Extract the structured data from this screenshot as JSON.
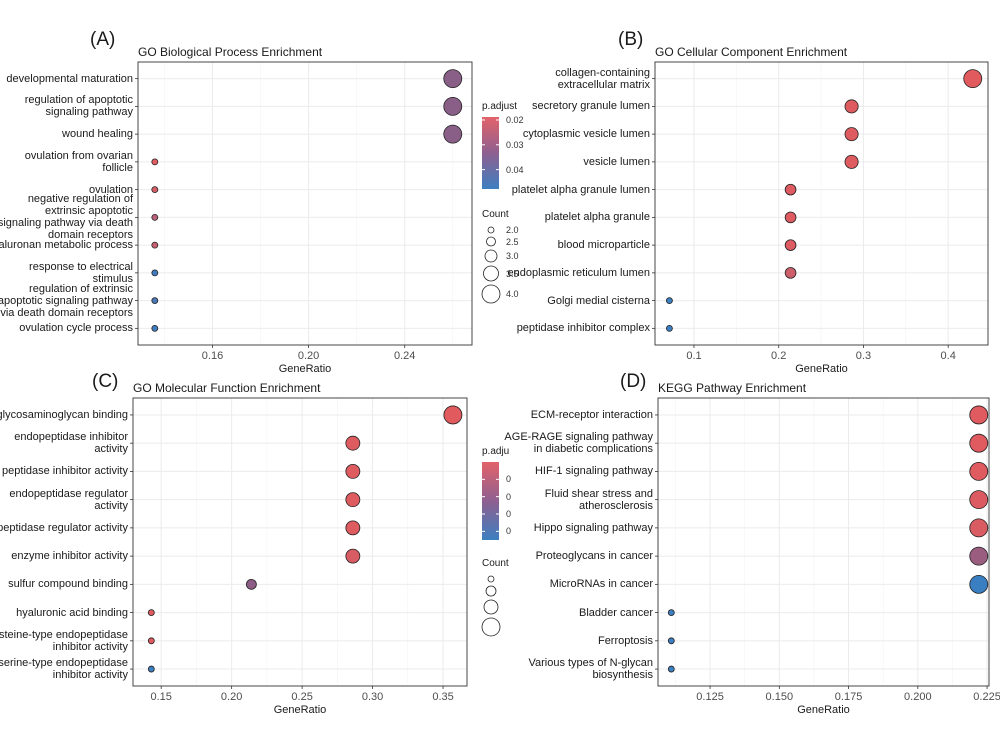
{
  "chart_data": [
    {
      "type": "dotplot",
      "panel_label": "(A)",
      "title": "GO Biological Process Enrichment",
      "xlabel": "GeneRatio",
      "categories": [
        "developmental maturation",
        "regulation of apoptotic\nsignaling pathway",
        "wound healing",
        "ovulation from ovarian\nfollicle",
        "ovulation",
        "negative regulation of\nextrinsic apoptotic\nsignaling pathway via death\ndomain receptors",
        "hyaluronan metabolic process",
        "response to electrical\nstimulus",
        "regulation of extrinsic\napoptotic signaling pathway\nvia death domain receptors",
        "ovulation cycle process"
      ],
      "values": [
        0.26,
        0.26,
        0.26,
        0.136,
        0.136,
        0.136,
        0.136,
        0.136,
        0.136,
        0.136
      ],
      "sizes": [
        4,
        4,
        4,
        2,
        2,
        2,
        2,
        2,
        2,
        2
      ],
      "colors": [
        "#8a5f87",
        "#8a5f87",
        "#8a5f87",
        "#df5d63",
        "#d65e66",
        "#b9617a",
        "#c8606f",
        "#3f7bbd",
        "#4b78b5",
        "#3f7cbd"
      ],
      "xlim": [
        0.129,
        0.268
      ],
      "xticks": [
        0.16,
        {
          "value": 0.2,
          "label": "0.20"
        },
        0.24
      ],
      "grid": true,
      "colorbar": {
        "title": "p.adjust",
        "clim": [
          0.0188,
          0.0478
        ],
        "ticks": [
          0.02,
          0.03,
          0.04
        ],
        "colors": [
          "#e2626a",
          "#8e6090",
          "#3d7fc0"
        ]
      },
      "size_legend": {
        "title": "Count",
        "values": [
          {
            "value": 2,
            "label": "2.0"
          },
          2.5,
          {
            "value": 3,
            "label": "3.0"
          },
          3.5,
          {
            "value": 4,
            "label": "4.0"
          }
        ]
      }
    },
    {
      "type": "dotplot",
      "panel_label": "(B)",
      "title": "GO Cellular Component Enrichment",
      "xlabel": "GeneRatio",
      "categories": [
        "collagen-containing\nextracellular matrix",
        "secretory granule lumen",
        "cytoplasmic vesicle lumen",
        "vesicle lumen",
        "platelet alpha granule lumen",
        "platelet alpha granule",
        "blood microparticle",
        "endoplasmic reticulum lumen",
        "Golgi medial cisterna",
        "peptidase inhibitor complex"
      ],
      "values": [
        0.429,
        0.286,
        0.286,
        0.286,
        0.214,
        0.214,
        0.214,
        0.214,
        0.071,
        0.071
      ],
      "sizes": [
        6,
        4,
        4,
        4,
        3,
        3,
        3,
        3,
        1,
        1
      ],
      "colors": [
        "#e05a5e",
        "#de5b60",
        "#de5b60",
        "#de5b60",
        "#dd5b61",
        "#dd5b61",
        "#dd5b61",
        "#cc5f6a",
        "#3d7ec0",
        "#3d7ec0"
      ],
      "xlim": [
        0.054,
        0.447
      ],
      "xticks": [
        0.1,
        0.2,
        0.3,
        0.4
      ],
      "grid": true
    },
    {
      "type": "dotplot",
      "panel_label": "(C)",
      "title": "GO Molecular Function Enrichment",
      "xlabel": "GeneRatio",
      "categories": [
        "glycosaminoglycan binding",
        "endopeptidase inhibitor\nactivity",
        "peptidase inhibitor activity",
        "endopeptidase regulator\nactivity",
        "peptidase regulator activity",
        "enzyme inhibitor activity",
        "sulfur compound binding",
        "hyaluronic acid binding",
        "cysteine-type endopeptidase\ninhibitor activity",
        "serine-type endopeptidase\ninhibitor activity"
      ],
      "values": [
        0.357,
        0.286,
        0.286,
        0.286,
        0.286,
        0.286,
        0.214,
        0.143,
        0.143,
        0.143
      ],
      "sizes": [
        5,
        4,
        4,
        4,
        4,
        4,
        3,
        2,
        2,
        2
      ],
      "colors": [
        "#e05a5e",
        "#de5b60",
        "#de5b60",
        "#de5b60",
        "#de5b60",
        "#d75c63",
        "#8d5d85",
        "#df5b60",
        "#df5b60",
        "#3d7ec0"
      ],
      "xlim": [
        0.13,
        0.367
      ],
      "xticks": [
        0.15,
        {
          "value": 0.2,
          "label": "0.20"
        },
        0.25,
        {
          "value": 0.3,
          "label": "0.30"
        },
        0.35
      ],
      "grid": true,
      "colorbar": {
        "title": "p.adju",
        "tick_labels": [
          "0",
          "0",
          "0",
          "0"
        ],
        "colors": [
          "#e2626a",
          "#8e6090",
          "#3d7fc0"
        ]
      },
      "size_legend": {
        "title": "Count",
        "values": [
          2,
          3,
          4,
          5
        ]
      }
    },
    {
      "type": "dotplot",
      "panel_label": "(D)",
      "title": "KEGG Pathway Enrichment",
      "xlabel": "GeneRatio",
      "categories": [
        "ECM-receptor interaction",
        "AGE-RAGE signaling pathway\nin diabetic complications",
        "HIF-1 signaling pathway",
        "Fluid shear stress and\natherosclerosis",
        "Hippo signaling pathway",
        "Proteoglycans in cancer",
        "MicroRNAs in cancer",
        "Bladder cancer",
        "Ferroptosis",
        "Various types of N-glycan\nbiosynthesis"
      ],
      "values": [
        0.222,
        0.222,
        0.222,
        0.222,
        0.222,
        0.222,
        0.222,
        0.111,
        0.111,
        0.111
      ],
      "sizes": [
        2,
        2,
        2,
        2,
        2,
        2,
        2,
        1,
        1,
        1
      ],
      "colors": [
        "#df5b60",
        "#df5b60",
        "#df5b60",
        "#dc5b62",
        "#d95c63",
        "#9a5d80",
        "#3b7fc3",
        "#3d7ec0",
        "#3d7ec0",
        "#3d7ec0"
      ],
      "xlim": [
        0.1062,
        0.2257
      ],
      "xticks": [
        0.125,
        {
          "value": 0.15,
          "label": "0.150"
        },
        0.175,
        {
          "value": 0.2,
          "label": "0.200"
        },
        0.225
      ],
      "grid": true
    }
  ]
}
